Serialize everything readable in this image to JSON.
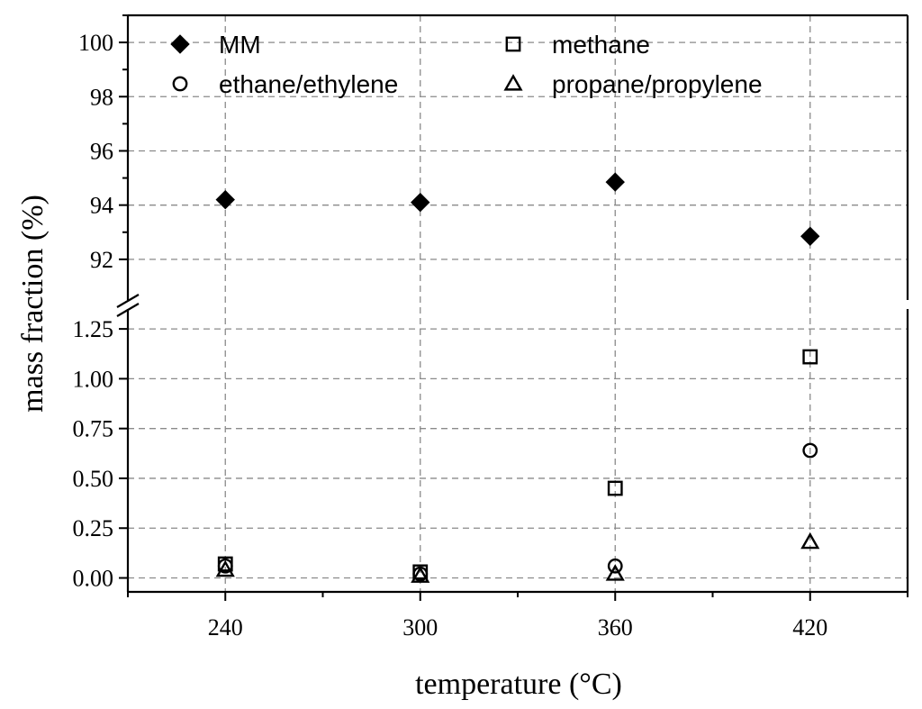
{
  "chart_data": {
    "type": "scatter",
    "xlabel": "temperature (°C)",
    "ylabel": "mass fraction (%)",
    "x_ticks": [
      "240",
      "300",
      "360",
      "420"
    ],
    "x_range": [
      210,
      450
    ],
    "y_axis_broken": true,
    "y_upper_range": [
      90.5,
      101.0
    ],
    "y_upper_ticks": [
      "92",
      "94",
      "96",
      "98",
      "100"
    ],
    "y_lower_range": [
      -0.07,
      1.35
    ],
    "y_lower_ticks": [
      "0.00",
      "0.25",
      "0.50",
      "0.75",
      "1.00",
      "1.25"
    ],
    "grid": true,
    "legend_position": "top",
    "x": [
      240,
      300,
      360,
      420
    ],
    "series": [
      {
        "name": "MM",
        "marker": "filled-diamond",
        "panel": "upper",
        "values": [
          94.2,
          94.1,
          94.85,
          92.85
        ]
      },
      {
        "name": "methane",
        "marker": "open-square",
        "panel": "lower",
        "values": [
          0.07,
          0.03,
          0.45,
          1.11
        ]
      },
      {
        "name": "ethane/ethylene",
        "marker": "open-circle",
        "panel": "lower",
        "values": [
          0.06,
          0.02,
          0.06,
          0.64
        ]
      },
      {
        "name": "propane/propylene",
        "marker": "open-triangle",
        "panel": "lower",
        "values": [
          0.04,
          0.01,
          0.02,
          0.18
        ]
      }
    ]
  }
}
